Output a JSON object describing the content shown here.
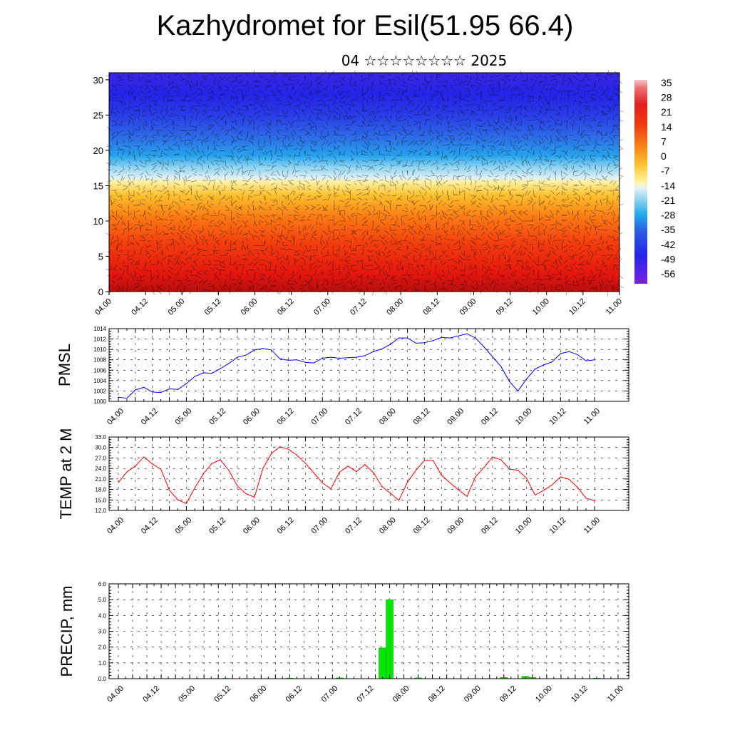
{
  "header": {
    "title": "Kazhydromet for Esil(51.95 66.4)",
    "subtitle": "04 ☆☆☆☆☆☆☆☆ 2025"
  },
  "chart_data": [
    {
      "type": "heatmap",
      "title": "",
      "xlabel": "",
      "ylabel": "",
      "x_tick_labels": [
        "04.00",
        "04.12",
        "05.00",
        "05.12",
        "06.00",
        "06.12",
        "07.00",
        "07.12",
        "08.00",
        "08.12",
        "09.00",
        "09.12",
        "10.00",
        "10.12",
        "11.00"
      ],
      "y_ticks": [
        0,
        5,
        10,
        15,
        20,
        25,
        30
      ],
      "ylim": [
        0,
        31
      ],
      "colorbar_labels": [
        "35",
        "28",
        "21",
        "14",
        "7",
        "0",
        "-7",
        "-14",
        "-21",
        "-28",
        "-35",
        "-42",
        "-49",
        "-56"
      ],
      "overlay": "wind barbs",
      "values_description_level_bands": [
        {
          "level": 2,
          "value": 30
        },
        {
          "level": 6,
          "value": 22
        },
        {
          "level": 10,
          "value": 10
        },
        {
          "level": 14,
          "value": -5
        },
        {
          "level": 16,
          "value": -12
        },
        {
          "level": 19,
          "value": -28
        },
        {
          "level": 22,
          "value": -40
        },
        {
          "level": 25,
          "value": -50
        },
        {
          "level": 30,
          "value": -55
        }
      ]
    },
    {
      "type": "line",
      "ylabel": "PMSL",
      "ylim": [
        1000,
        1014
      ],
      "y_tick_labels": [
        "1000",
        "1002",
        "1004",
        "1006",
        "1008",
        "1010",
        "1012",
        "1014"
      ],
      "x_tick_labels": [
        "04.00",
        "04.12",
        "05.00",
        "05.12",
        "06.00",
        "06.12",
        "07.00",
        "07.12",
        "08.00",
        "08.12",
        "09.00",
        "09.12",
        "10.00",
        "10.12",
        "11.00"
      ],
      "series": [
        {
          "color": "#0000ff",
          "x": [
            0,
            3,
            6,
            9,
            12,
            15,
            18,
            21,
            24,
            27,
            30,
            33,
            36,
            39,
            42,
            45,
            48,
            51,
            54,
            57,
            60,
            63,
            66,
            69,
            72,
            75,
            78,
            81,
            84,
            87,
            90,
            93,
            96,
            99,
            102,
            105,
            108,
            111,
            114,
            117,
            120,
            123,
            126,
            129,
            132,
            135,
            138,
            141,
            144,
            147,
            150,
            153,
            156,
            159,
            162,
            165,
            168
          ],
          "values": [
            1000.8,
            1000.6,
            1002.2,
            1002.7,
            1001.8,
            1001.7,
            1002.4,
            1002.3,
            1003.4,
            1004.8,
            1005.5,
            1005.4,
            1006.3,
            1007.3,
            1008.5,
            1008.9,
            1009.9,
            1010.2,
            1009.9,
            1008.2,
            1007.9,
            1008.0,
            1007.5,
            1007.4,
            1008.3,
            1008.5,
            1008.3,
            1008.4,
            1008.5,
            1008.8,
            1009.6,
            1010.1,
            1011.0,
            1012.2,
            1012.2,
            1011.2,
            1011.3,
            1011.7,
            1012.3,
            1012.2,
            1012.6,
            1013.0,
            1012.2,
            1010.5,
            1008.6,
            1006.7,
            1003.8,
            1002.0,
            1004.3,
            1006.2,
            1007.0,
            1007.6,
            1009.2,
            1009.6,
            1009.0,
            1007.8,
            1008.0
          ]
        }
      ]
    },
    {
      "type": "line",
      "ylabel": "TEMP at 2 M",
      "ylim": [
        12,
        33
      ],
      "y_tick_labels": [
        "12.0",
        "15.0",
        "18.0",
        "21.0",
        "24.0",
        "27.0",
        "30.0",
        "33.0"
      ],
      "x_tick_labels": [
        "04.00",
        "04.12",
        "05.00",
        "05.12",
        "06.00",
        "06.12",
        "07.00",
        "07.12",
        "08.00",
        "08.12",
        "09.00",
        "09.12",
        "10.00",
        "10.12",
        "11.00"
      ],
      "series": [
        {
          "color": "#ff0000",
          "x": [
            0,
            3,
            6,
            9,
            12,
            15,
            18,
            21,
            24,
            27,
            30,
            33,
            36,
            39,
            42,
            45,
            48,
            51,
            54,
            57,
            60,
            63,
            66,
            69,
            72,
            75,
            78,
            81,
            84,
            87,
            90,
            93,
            96,
            99,
            102,
            105,
            108,
            111,
            114,
            117,
            120,
            123,
            126,
            129,
            132,
            135,
            138,
            141,
            144,
            147,
            150,
            153,
            156,
            159,
            162,
            165,
            168
          ],
          "values": [
            20.0,
            23.0,
            24.7,
            27.3,
            25.3,
            23.8,
            17.8,
            15.0,
            14.0,
            18.5,
            22.5,
            25.4,
            26.5,
            23.4,
            19.0,
            16.8,
            15.8,
            24.0,
            28.3,
            30.2,
            29.5,
            27.8,
            25.5,
            22.7,
            19.9,
            18.2,
            22.9,
            24.7,
            23.1,
            25.1,
            22.8,
            18.8,
            16.9,
            14.9,
            20.1,
            23.5,
            26.3,
            26.3,
            22.1,
            19.9,
            17.9,
            16.0,
            21.6,
            24.3,
            27.3,
            26.5,
            23.8,
            23.5,
            21.2,
            16.4,
            17.7,
            19.3,
            21.6,
            20.9,
            18.6,
            15.5,
            14.8
          ]
        }
      ]
    },
    {
      "type": "bar",
      "ylabel": "PRECIP, mm",
      "ylim": [
        0,
        6
      ],
      "y_tick_labels": [
        "0.0",
        "1.0",
        "2.0",
        "3.0",
        "4.0",
        "5.0",
        "6.0"
      ],
      "x_tick_labels": [
        "04.00",
        "04.12",
        "05.00",
        "05.12",
        "06.00",
        "06.12",
        "07.00",
        "07.12",
        "08.00",
        "08.12",
        "09.00",
        "09.12",
        "10.00",
        "10.12",
        "11.00"
      ],
      "bars": [
        {
          "x": 45,
          "value": 0.02
        },
        {
          "x": 72,
          "value": 0.03
        },
        {
          "x": 93,
          "value": 0.05
        },
        {
          "x": 111,
          "value": 1.95
        },
        {
          "x": 114,
          "value": 5.0
        },
        {
          "x": 126,
          "value": 0.05
        },
        {
          "x": 162,
          "value": 0.08
        },
        {
          "x": 171,
          "value": 0.15
        },
        {
          "x": 174,
          "value": 0.08
        },
        {
          "x": 201,
          "value": 0.03
        }
      ]
    }
  ]
}
